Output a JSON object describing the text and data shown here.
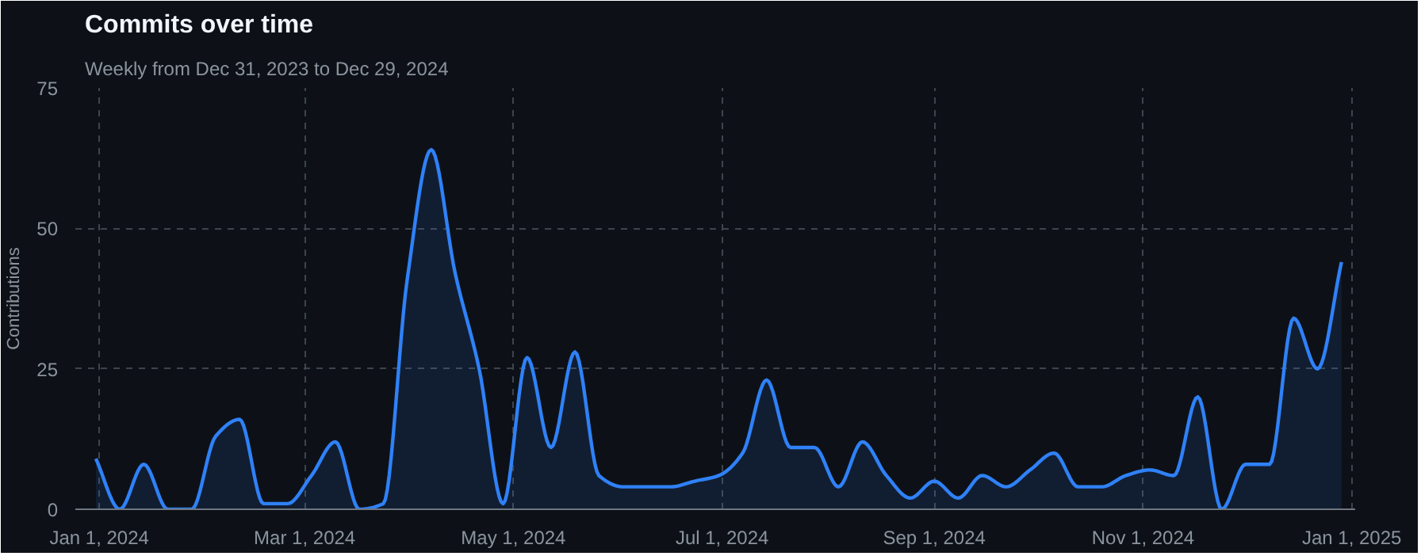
{
  "chart_data": {
    "type": "area",
    "title": "Commits over time",
    "subtitle": "Weekly from Dec 31, 2023 to Dec 29, 2024",
    "ylabel": "Contributions",
    "x": [
      "2023-12-31",
      "2024-01-07",
      "2024-01-14",
      "2024-01-21",
      "2024-01-28",
      "2024-02-04",
      "2024-02-11",
      "2024-02-18",
      "2024-02-25",
      "2024-03-03",
      "2024-03-10",
      "2024-03-17",
      "2024-03-24",
      "2024-03-31",
      "2024-04-07",
      "2024-04-14",
      "2024-04-21",
      "2024-04-28",
      "2024-05-05",
      "2024-05-12",
      "2024-05-19",
      "2024-05-26",
      "2024-06-02",
      "2024-06-09",
      "2024-06-16",
      "2024-06-23",
      "2024-06-30",
      "2024-07-07",
      "2024-07-14",
      "2024-07-21",
      "2024-07-28",
      "2024-08-04",
      "2024-08-11",
      "2024-08-18",
      "2024-08-25",
      "2024-09-01",
      "2024-09-08",
      "2024-09-15",
      "2024-09-22",
      "2024-09-29",
      "2024-10-06",
      "2024-10-13",
      "2024-10-20",
      "2024-10-27",
      "2024-11-03",
      "2024-11-10",
      "2024-11-17",
      "2024-11-24",
      "2024-12-01",
      "2024-12-08",
      "2024-12-15",
      "2024-12-22",
      "2024-12-29"
    ],
    "series": [
      {
        "color": "#2f81f7",
        "values": [
          9,
          0,
          8,
          0,
          0,
          13,
          16,
          1,
          1,
          6,
          12,
          0,
          1,
          41,
          64,
          42,
          25,
          1,
          27,
          11,
          28,
          6,
          4,
          4,
          4,
          5,
          6,
          10,
          23,
          11,
          11,
          4,
          12,
          6,
          2,
          5,
          2,
          6,
          4,
          7,
          10,
          4,
          4,
          6,
          7,
          6,
          20,
          0,
          8,
          8,
          34,
          25,
          44
        ]
      }
    ],
    "xlim": [
      "2023-12-25",
      "2025-01-02"
    ],
    "xticks": [
      {
        "value": "2024-01-01",
        "label": "Jan 1, 2024"
      },
      {
        "value": "2024-03-01",
        "label": "Mar 1, 2024"
      },
      {
        "value": "2024-05-01",
        "label": "May 1, 2024"
      },
      {
        "value": "2024-07-01",
        "label": "Jul 1, 2024"
      },
      {
        "value": "2024-09-01",
        "label": "Sep 1, 2024"
      },
      {
        "value": "2024-11-01",
        "label": "Nov 1, 2024"
      },
      {
        "value": "2025-01-01",
        "label": "Jan 1, 2025"
      }
    ],
    "ylim": [
      0,
      75
    ],
    "yticks": [
      0,
      25,
      50,
      75
    ],
    "grid": true,
    "marker": "none",
    "line_style": "solid"
  }
}
